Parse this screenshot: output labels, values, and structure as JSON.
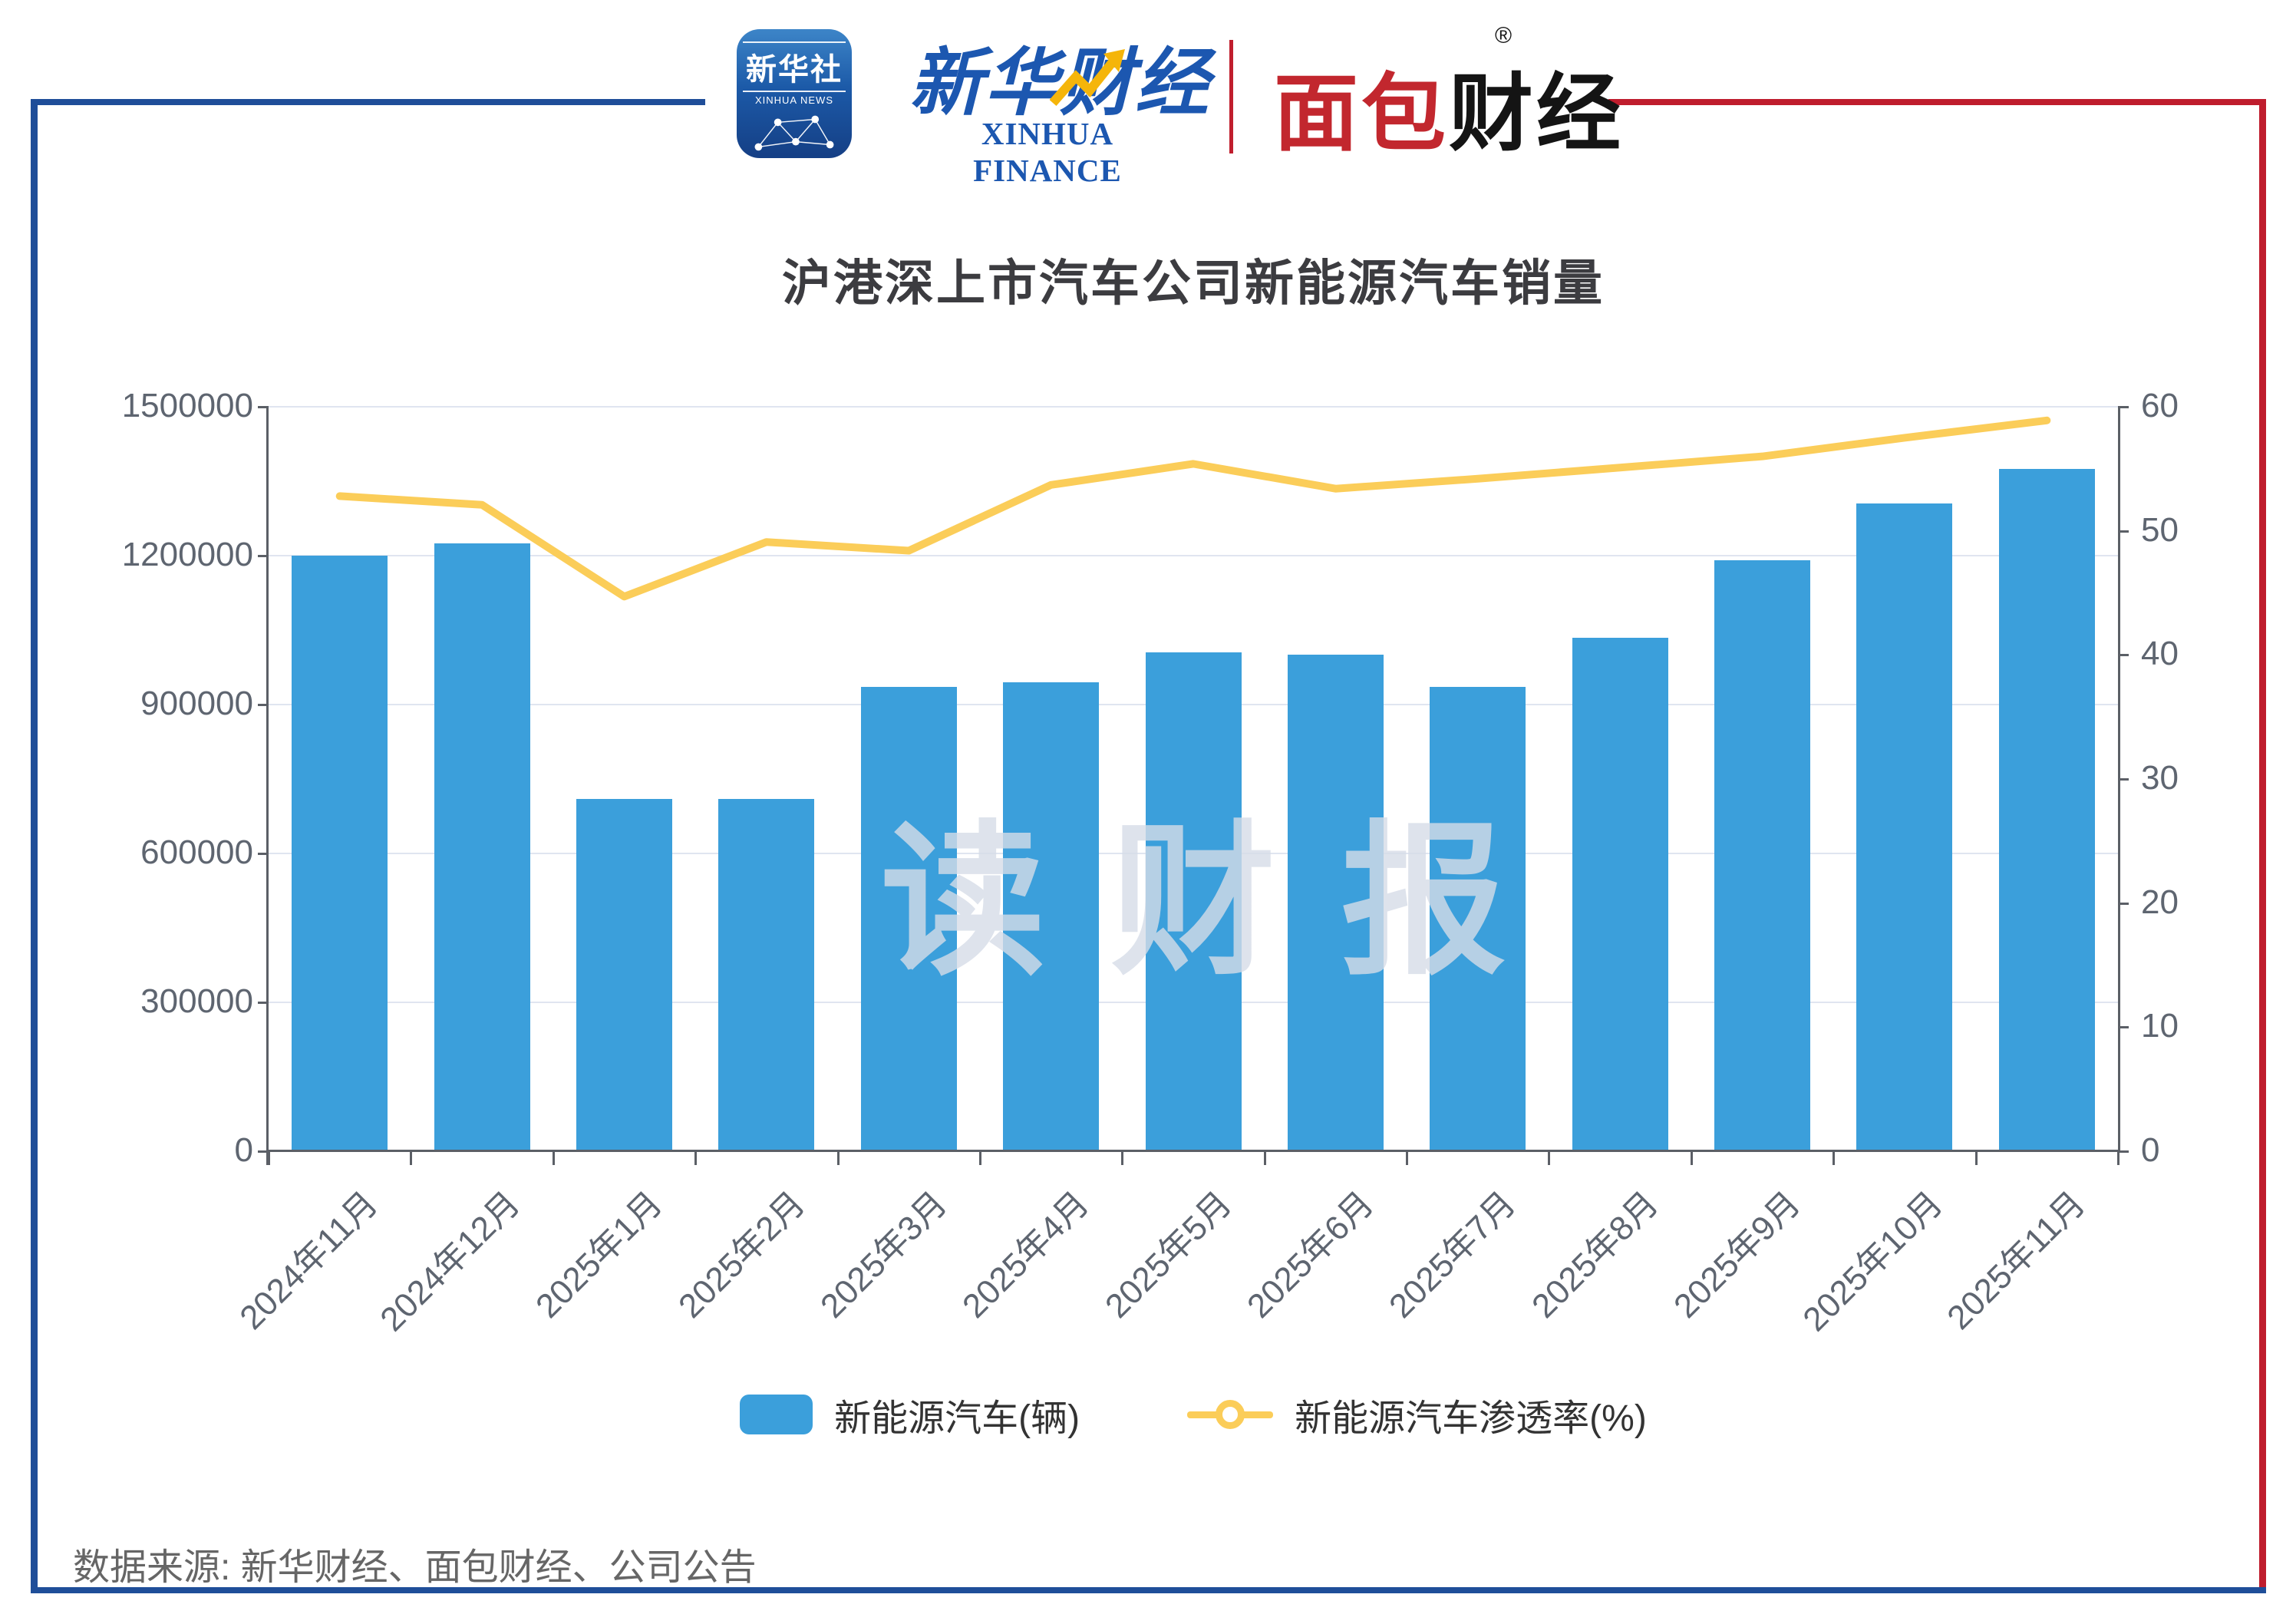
{
  "header": {
    "xinhua_icon": {
      "cn": "新华社",
      "en": "XINHUA NEWS"
    },
    "xinhua_finance": {
      "cn": "新华财经",
      "en": "XINHUA FINANCE"
    },
    "mianbao": {
      "red": "面包",
      "black": "财经",
      "reg": "®"
    }
  },
  "title": "沪港深上市汽车公司新能源汽车销量",
  "watermark": {
    "chars": [
      "读",
      "财",
      "报"
    ]
  },
  "legend": {
    "bar_label": "新能源汽车(辆)",
    "line_label": "新能源汽车渗透率(%)"
  },
  "footer": {
    "source": "数据来源: 新华财经、面包财经、公司公告"
  },
  "colors": {
    "bar": "#3b9fdb",
    "line": "#fbcd59",
    "frame_blue": "#1f4e99",
    "frame_red": "#bf1d2d",
    "grid": "#e0e5f0",
    "axis": "#5b5f66",
    "axis_text": "#5e6570"
  },
  "chart_data": {
    "type": "bar",
    "subtype": "bar+line dual axis",
    "title": "沪港深上市汽车公司新能源汽车销量",
    "categories": [
      "2024年11月",
      "2024年12月",
      "2025年1月",
      "2025年2月",
      "2025年3月",
      "2025年4月",
      "2025年5月",
      "2025年6月",
      "2025年7月",
      "2025年8月",
      "2025年9月",
      "2025年10月",
      "2025年11月"
    ],
    "series": [
      {
        "name": "新能源汽车(辆)",
        "type": "bar",
        "axis": "left",
        "values": [
          1200000,
          1225000,
          710000,
          710000,
          935000,
          945000,
          1005000,
          1000000,
          935000,
          1035000,
          1190000,
          1305000,
          1375000
        ]
      },
      {
        "name": "新能源汽车渗透率(%)",
        "type": "line",
        "axis": "right",
        "values": [
          52.8,
          52.1,
          44.7,
          49.1,
          48.4,
          53.7,
          55.4,
          53.4,
          54.2,
          55.1,
          56.0,
          57.5,
          58.9
        ]
      }
    ],
    "left_axis": {
      "min": 0,
      "max": 1500000,
      "ticks": [
        0,
        300000,
        600000,
        900000,
        1200000,
        1500000
      ]
    },
    "right_axis": {
      "min": 0,
      "max": 60,
      "ticks": [
        0,
        10,
        20,
        30,
        40,
        50,
        60
      ]
    },
    "grid": true,
    "legend_position": "bottom",
    "x_label_rotation": 45
  }
}
